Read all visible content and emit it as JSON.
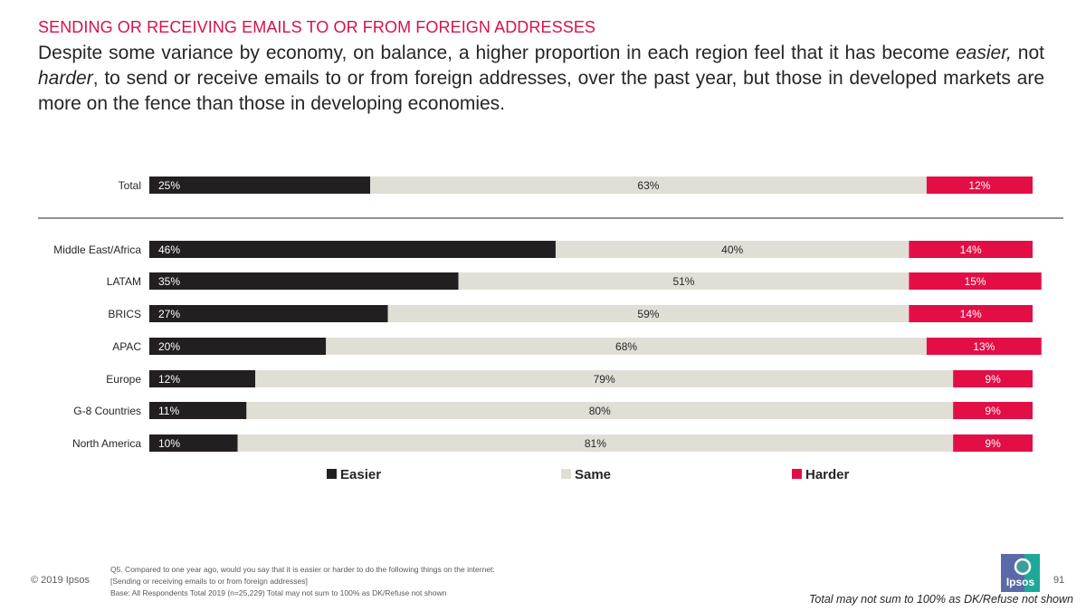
{
  "header": {
    "section_label": "SENDING OR RECEIVING EMAILS TO OR FROM FOREIGN ADDRESSES",
    "headline": {
      "part1": "Despite some variance by economy, on balance, a higher proportion in each region feel that it has become ",
      "em1": "easier,",
      "part2": " not ",
      "em2": "harder",
      "part3": ", to send or receive emails to or from foreign addresses, over the past year, but those in developed markets are more on the fence than those in developing economies."
    }
  },
  "chart_data": {
    "type": "bar",
    "orientation": "horizontal",
    "stacked": true,
    "categories": [
      "Total",
      "Middle East/Africa",
      "LATAM",
      "BRICS",
      "APAC",
      "Europe",
      "G-8 Countries",
      "North America"
    ],
    "series": [
      {
        "name": "Easier",
        "color": "#231f20",
        "label_color": "#ffffff",
        "values": [
          25,
          46,
          35,
          27,
          20,
          12,
          11,
          10
        ],
        "labels": [
          "25%",
          "46%",
          "35%",
          "27%",
          "20%",
          "12%",
          "11%",
          "10%"
        ]
      },
      {
        "name": "Same",
        "color": "#e1ded5",
        "label_color": "#262626",
        "values": [
          63,
          40,
          51,
          59,
          68,
          79,
          80,
          81
        ],
        "labels": [
          "63%",
          "40%",
          "51%",
          "59%",
          "68%",
          "79%",
          "80%",
          "81%"
        ]
      },
      {
        "name": "Harder",
        "color": "#e40e46",
        "label_color": "#ffffff",
        "values": [
          12,
          14,
          15,
          14,
          13,
          9,
          9,
          9
        ],
        "labels": [
          "12%",
          "14%",
          "15%",
          "14%",
          "13%",
          "9%",
          "9%",
          "9%"
        ]
      }
    ],
    "xlim": [
      0,
      100
    ],
    "legend": "bottom",
    "grid": false
  },
  "footer": {
    "copyright": "© 2019 Ipsos",
    "question_lines": [
      "Q5. Compared to one year ago, would you say that it is easier or harder to do the following things on the internet:",
      "[Sending or receiving emails to or from foreign addresses]",
      "Base: All Respondents Total  2019 (n=25,229) Total may not sum to 100% as DK/Refuse not shown"
    ],
    "page_number": "91",
    "bottom_note": "Total may not sum to 100% as DK/Refuse not shown",
    "logo_text": "Ipsos"
  }
}
